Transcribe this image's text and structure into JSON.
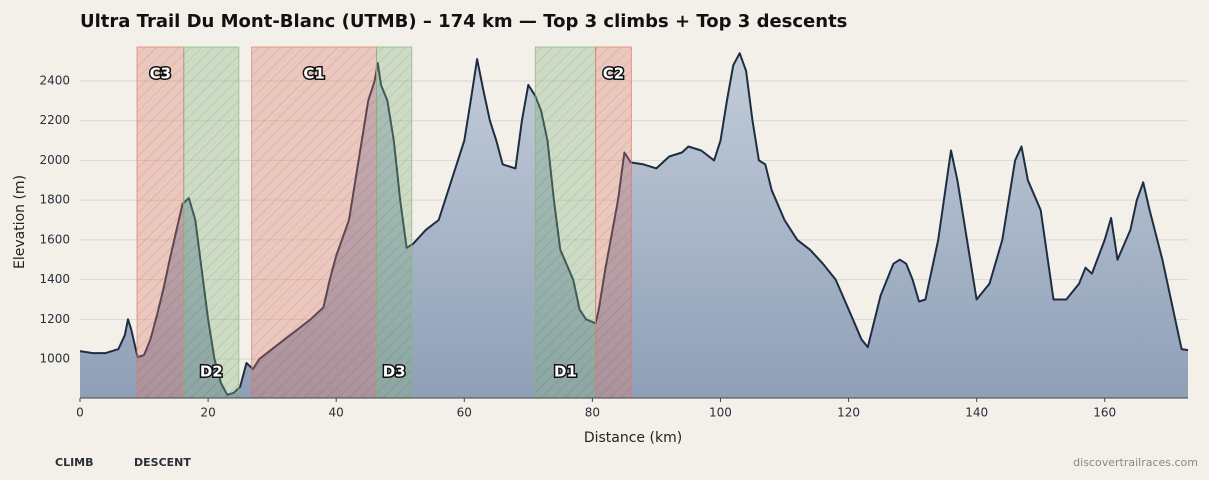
{
  "chart_data": {
    "type": "area",
    "title": "Ultra Trail Du Mont-Blanc (UTMB) – 174 km — Top 3 climbs + Top 3 descents",
    "xlabel": "Distance (km)",
    "ylabel": "Elevation (m)",
    "xlim": [
      0,
      173
    ],
    "ylim": [
      804,
      2571
    ],
    "xticks": [
      0,
      20,
      40,
      60,
      80,
      100,
      120,
      140,
      160
    ],
    "yticks": [
      1000,
      1200,
      1400,
      1600,
      1800,
      2000,
      2200,
      2400
    ],
    "grid": true,
    "line_color": "#1d2d44",
    "fill_top": "#c3cdd9",
    "fill_bottom": "#8f9fb7",
    "x": [
      0,
      2,
      4,
      6,
      7,
      7.5,
      8,
      9,
      10,
      11,
      12,
      13,
      14,
      15,
      16,
      17,
      18,
      19,
      20,
      21,
      22,
      23,
      24,
      25,
      26,
      27,
      28,
      30,
      32,
      34,
      36,
      38,
      39,
      40,
      42,
      43,
      44,
      45,
      46,
      46.5,
      47,
      48,
      49,
      50,
      51,
      52,
      54,
      56,
      58,
      60,
      61,
      62,
      63,
      64,
      65,
      66,
      68,
      69,
      70,
      71,
      72,
      73,
      74,
      75,
      77,
      78,
      79,
      80.5,
      81,
      82,
      84,
      85,
      86,
      88,
      90,
      92,
      94,
      95,
      97,
      99,
      100,
      101,
      102,
      103,
      104,
      105,
      106,
      107,
      108,
      110,
      112,
      114,
      116,
      118,
      120,
      122,
      123,
      125,
      127,
      128,
      129,
      130,
      131,
      132,
      134,
      136,
      137,
      138,
      140,
      142,
      144,
      146,
      147,
      148,
      150,
      152,
      154,
      156,
      157,
      158,
      160,
      161,
      162,
      164,
      165,
      166,
      167,
      169,
      171,
      172,
      173
    ],
    "series": [
      {
        "name": "Elevation",
        "values": [
          1040,
          1030,
          1030,
          1050,
          1120,
          1200,
          1150,
          1010,
          1020,
          1100,
          1220,
          1350,
          1500,
          1640,
          1780,
          1810,
          1700,
          1450,
          1200,
          1000,
          880,
          820,
          830,
          860,
          980,
          950,
          1000,
          1050,
          1100,
          1150,
          1200,
          1260,
          1400,
          1520,
          1700,
          1900,
          2100,
          2300,
          2400,
          2490,
          2380,
          2300,
          2100,
          1800,
          1560,
          1580,
          1650,
          1700,
          1900,
          2100,
          2300,
          2510,
          2350,
          2200,
          2100,
          1980,
          1960,
          2200,
          2380,
          2330,
          2250,
          2100,
          1800,
          1550,
          1400,
          1250,
          1200,
          1180,
          1250,
          1450,
          1800,
          2040,
          1990,
          1980,
          1960,
          2020,
          2040,
          2070,
          2050,
          2000,
          2100,
          2300,
          2480,
          2540,
          2450,
          2200,
          2000,
          1980,
          1850,
          1700,
          1600,
          1550,
          1480,
          1400,
          1250,
          1100,
          1060,
          1320,
          1480,
          1500,
          1480,
          1400,
          1290,
          1300,
          1600,
          2050,
          1900,
          1700,
          1300,
          1380,
          1600,
          2000,
          2070,
          1900,
          1750,
          1300,
          1300,
          1380,
          1460,
          1430,
          1600,
          1710,
          1500,
          1650,
          1800,
          1890,
          1750,
          1500,
          1200,
          1050,
          1045
        ]
      }
    ],
    "spans": [
      {
        "label": "C3",
        "x": [
          8.9,
          16.2
        ],
        "color": "#e07b6a",
        "label_pos": "top"
      },
      {
        "label": "D2",
        "x": [
          16.2,
          24.8
        ],
        "color": "#86b57f",
        "label_pos": "bottom"
      },
      {
        "label": "C1",
        "x": [
          26.8,
          46.3
        ],
        "color": "#e07b6a",
        "label_pos": "top"
      },
      {
        "label": "D3",
        "x": [
          46.3,
          51.8
        ],
        "color": "#86b57f",
        "label_pos": "bottom"
      },
      {
        "label": "D1",
        "x": [
          71.1,
          80.5
        ],
        "color": "#86b57f",
        "label_pos": "bottom"
      },
      {
        "label": "C2",
        "x": [
          80.5,
          86.1
        ],
        "color": "#e07b6a",
        "label_pos": "top"
      }
    ],
    "legend": [
      {
        "name": "CLIMB",
        "color": "#a07070"
      },
      {
        "name": "DESCENT",
        "color": "#5a7a70"
      }
    ],
    "source": "discovertrailraces.com"
  }
}
